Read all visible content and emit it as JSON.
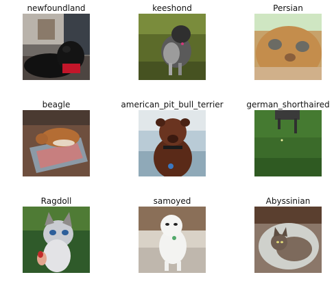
{
  "panels": [
    {
      "label": "newfoundland"
    },
    {
      "label": "keeshond"
    },
    {
      "label": "Persian"
    },
    {
      "label": "beagle"
    },
    {
      "label": "american_pit_bull_terrier"
    },
    {
      "label": "german_shorthaired"
    },
    {
      "label": "Ragdoll"
    },
    {
      "label": "samoyed"
    },
    {
      "label": "Abyssinian"
    }
  ]
}
